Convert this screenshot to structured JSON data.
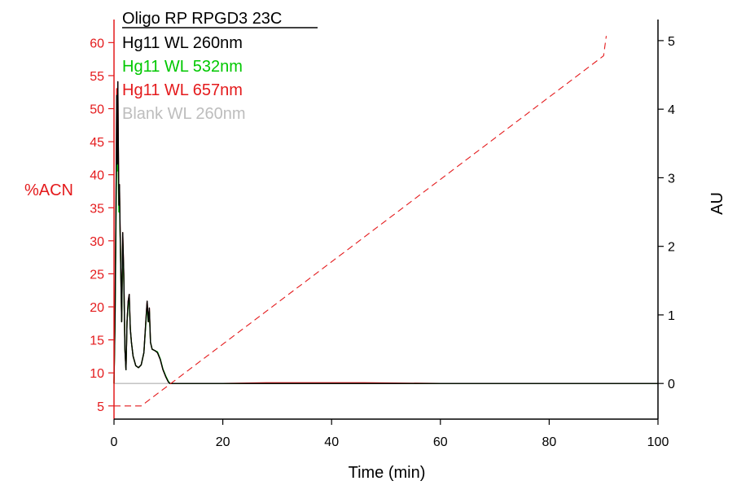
{
  "chart_data": {
    "type": "line",
    "title": "Oligo RP RPGD3 23C",
    "xlabel": "Time (min)",
    "ylabel_left": "%ACN",
    "ylabel_right": "AU",
    "xlim": [
      0,
      100
    ],
    "ylim_left": [
      3,
      63
    ],
    "ylim_right": [
      -0.52,
      5.26
    ],
    "x_ticks": [
      0,
      20,
      40,
      60,
      80,
      100
    ],
    "y_left_ticks": [
      5,
      10,
      15,
      20,
      25,
      30,
      35,
      40,
      45,
      50,
      55,
      60
    ],
    "y_right_ticks": [
      0,
      1,
      2,
      3,
      4,
      5
    ],
    "colors": {
      "left_axis": "#e41a1c",
      "right_axis": "#000000"
    },
    "legend": [
      {
        "label": "Hg11 WL 260nm",
        "color": "#000000"
      },
      {
        "label": "Hg11 WL 532nm",
        "color": "#00c800"
      },
      {
        "label": "Hg11 WL 657nm",
        "color": "#e41a1c"
      },
      {
        "label": "Blank WL 260nm",
        "color": "#bdbdbd"
      }
    ],
    "gradient": {
      "name": "%ACN",
      "axis": "left",
      "color": "#e41a1c",
      "style": "dashed",
      "x": [
        0,
        5,
        90,
        90.5
      ],
      "y": [
        5,
        5,
        58,
        61
      ]
    },
    "series": [
      {
        "name": "Hg11 WL 260nm",
        "axis": "right",
        "color": "#000000",
        "x": [
          0,
          0.2,
          0.4,
          0.5,
          0.6,
          0.7,
          0.8,
          0.9,
          1.0,
          1.1,
          1.2,
          1.4,
          1.6,
          1.8,
          2.0,
          2.2,
          2.4,
          2.6,
          2.8,
          3.0,
          3.2,
          3.5,
          4.0,
          4.5,
          5.0,
          5.5,
          6.0,
          6.1,
          6.3,
          6.5,
          6.7,
          7.0,
          7.5,
          8.0,
          8.5,
          9.0,
          9.5,
          10.0,
          10.3,
          11,
          20,
          40,
          60,
          80,
          100
        ],
        "y": [
          0.0,
          1.0,
          3.0,
          4.2,
          3.2,
          4.4,
          3.5,
          2.6,
          2.9,
          2.4,
          1.9,
          0.9,
          2.2,
          1.6,
          0.5,
          0.2,
          0.9,
          1.2,
          1.3,
          0.8,
          0.6,
          0.4,
          0.26,
          0.23,
          0.27,
          0.45,
          1.1,
          1.2,
          0.9,
          1.1,
          0.6,
          0.5,
          0.48,
          0.45,
          0.35,
          0.2,
          0.1,
          0.02,
          0.0,
          0.0,
          0.0,
          0.0,
          0.0,
          0.0,
          0.0
        ]
      },
      {
        "name": "Hg11 WL 532nm",
        "axis": "right",
        "color": "#00c800",
        "x": [
          0,
          0.2,
          0.4,
          0.5,
          0.6,
          0.7,
          0.8,
          0.9,
          1.0,
          1.1,
          1.2,
          1.4,
          1.6,
          1.8,
          2.0,
          2.2,
          2.4,
          2.6,
          2.8,
          3.0,
          3.2,
          3.5,
          4.0,
          4.5,
          5.0,
          5.5,
          6.0,
          6.1,
          6.3,
          6.5,
          6.7,
          7.0,
          7.5,
          8.0,
          8.5,
          9.0,
          9.5,
          10.0,
          10.3,
          11,
          20,
          40,
          60,
          80,
          100
        ],
        "y": [
          0.0,
          0.9,
          2.6,
          3.4,
          3.1,
          3.6,
          3.0,
          2.5,
          2.8,
          2.3,
          1.85,
          0.9,
          2.1,
          1.55,
          0.5,
          0.2,
          0.9,
          1.15,
          1.25,
          0.8,
          0.6,
          0.4,
          0.26,
          0.23,
          0.27,
          0.45,
          1.05,
          1.15,
          0.9,
          1.05,
          0.6,
          0.5,
          0.48,
          0.46,
          0.36,
          0.21,
          0.11,
          0.03,
          0.0,
          0.0,
          0.0,
          0.0,
          0.0,
          0.0,
          0.0
        ]
      },
      {
        "name": "Hg11 WL 657nm",
        "axis": "right",
        "color": "#e41a1c",
        "x": [
          0,
          0.2,
          0.4,
          0.5,
          0.6,
          0.7,
          0.8,
          0.9,
          1.0,
          1.1,
          1.2,
          1.4,
          1.6,
          1.8,
          2.0,
          2.2,
          2.4,
          2.6,
          2.8,
          3.0,
          3.2,
          3.5,
          4.0,
          4.5,
          5.0,
          5.5,
          6.0,
          6.1,
          6.3,
          6.5,
          6.7,
          7.0,
          7.5,
          8.0,
          8.5,
          9.0,
          9.5,
          10.0,
          10.3,
          11,
          20,
          28,
          46,
          60,
          80,
          100
        ],
        "y": [
          0.0,
          1.0,
          3.0,
          4.3,
          3.2,
          4.4,
          3.5,
          2.6,
          2.9,
          2.4,
          1.9,
          0.9,
          2.2,
          1.6,
          0.5,
          0.2,
          0.9,
          1.2,
          1.3,
          0.8,
          0.6,
          0.4,
          0.26,
          0.23,
          0.27,
          0.45,
          1.1,
          1.2,
          0.9,
          1.1,
          0.6,
          0.5,
          0.48,
          0.45,
          0.35,
          0.2,
          0.1,
          0.02,
          0.0,
          0.0,
          0.0,
          0.01,
          0.01,
          0.0,
          0.0,
          0.0
        ]
      },
      {
        "name": "Blank WL 260nm",
        "axis": "right",
        "color": "#bdbdbd",
        "x": [
          0,
          100
        ],
        "y": [
          0.0,
          0.0
        ]
      }
    ],
    "grid": false,
    "legend_position": "top-left"
  }
}
